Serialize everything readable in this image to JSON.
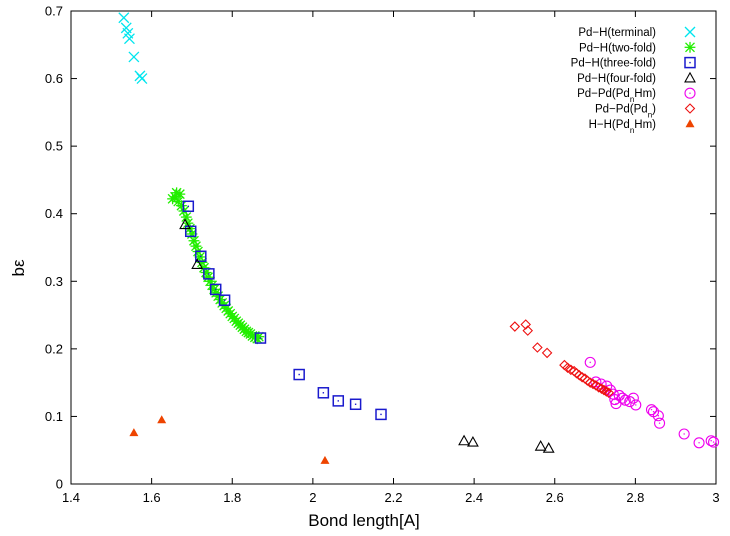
{
  "chart_data": {
    "type": "scatter",
    "title": "",
    "xlabel": "Bond length[A]",
    "ylabel": "bε",
    "xlim": [
      1.4,
      3.0
    ],
    "ylim": [
      0.0,
      0.7
    ],
    "xticks": [
      "1.4",
      "1.6",
      "1.8",
      "2",
      "2.2",
      "2.4",
      "2.6",
      "2.8",
      "3"
    ],
    "yticks": [
      "0",
      "0.1",
      "0.2",
      "0.3",
      "0.4",
      "0.5",
      "0.6",
      "0.7"
    ],
    "grid": false,
    "legend_position": "top-right",
    "series": [
      {
        "name": "Pd−H(terminal)",
        "name_base": "Pd−H(terminal)",
        "name_sub": "",
        "name_tail": "",
        "color": "#00e5ee",
        "marker": "cross",
        "points": [
          [
            1.531,
            0.69
          ],
          [
            1.537,
            0.675
          ],
          [
            1.541,
            0.667
          ],
          [
            1.545,
            0.659
          ],
          [
            1.556,
            0.632
          ],
          [
            1.571,
            0.604
          ],
          [
            1.576,
            0.6
          ]
        ]
      },
      {
        "name": "Pd−H(two-fold)",
        "name_base": "Pd−H(two-fold)",
        "name_sub": "",
        "name_tail": "",
        "color": "#22ee00",
        "marker": "star",
        "points": [
          [
            1.652,
            0.422
          ],
          [
            1.658,
            0.425
          ],
          [
            1.662,
            0.431
          ],
          [
            1.666,
            0.418
          ],
          [
            1.67,
            0.429
          ],
          [
            1.674,
            0.412
          ],
          [
            1.68,
            0.404
          ],
          [
            1.686,
            0.395
          ],
          [
            1.69,
            0.386
          ],
          [
            1.695,
            0.378
          ],
          [
            1.7,
            0.37
          ],
          [
            1.705,
            0.36
          ],
          [
            1.71,
            0.352
          ],
          [
            1.715,
            0.344
          ],
          [
            1.72,
            0.336
          ],
          [
            1.725,
            0.328
          ],
          [
            1.73,
            0.32
          ],
          [
            1.735,
            0.313
          ],
          [
            1.74,
            0.306
          ],
          [
            1.745,
            0.3
          ],
          [
            1.75,
            0.294
          ],
          [
            1.755,
            0.288
          ],
          [
            1.76,
            0.283
          ],
          [
            1.765,
            0.278
          ],
          [
            1.77,
            0.273
          ],
          [
            1.775,
            0.268
          ],
          [
            1.78,
            0.264
          ],
          [
            1.785,
            0.26
          ],
          [
            1.79,
            0.256
          ],
          [
            1.795,
            0.252
          ],
          [
            1.8,
            0.248
          ],
          [
            1.805,
            0.245
          ],
          [
            1.81,
            0.241
          ],
          [
            1.815,
            0.238
          ],
          [
            1.82,
            0.235
          ],
          [
            1.825,
            0.232
          ],
          [
            1.83,
            0.229
          ],
          [
            1.835,
            0.226
          ],
          [
            1.84,
            0.224
          ],
          [
            1.845,
            0.222
          ],
          [
            1.85,
            0.219
          ],
          [
            1.856,
            0.217
          ],
          [
            1.862,
            0.215
          ],
          [
            1.866,
            0.218
          ]
        ]
      },
      {
        "name": "Pd−H(three-fold)",
        "name_base": "Pd−H(three-fold)",
        "name_sub": "",
        "name_tail": "",
        "color": "#1a1acd",
        "marker": "square",
        "points": [
          [
            1.691,
            0.411
          ],
          [
            1.697,
            0.374
          ],
          [
            1.722,
            0.337
          ],
          [
            1.742,
            0.311
          ],
          [
            1.759,
            0.288
          ],
          [
            1.781,
            0.272
          ],
          [
            1.87,
            0.216
          ],
          [
            1.966,
            0.162
          ],
          [
            2.026,
            0.135
          ],
          [
            2.063,
            0.123
          ],
          [
            2.106,
            0.118
          ],
          [
            2.169,
            0.103
          ]
        ]
      },
      {
        "name": "Pd−H(four-fold)",
        "name_base": "Pd−H(four-fold)",
        "name_sub": "",
        "name_tail": "",
        "color": "#000000",
        "marker": "triangle-open",
        "points": [
          [
            1.683,
            0.384
          ],
          [
            1.713,
            0.325
          ],
          [
            2.375,
            0.064
          ],
          [
            2.397,
            0.062
          ],
          [
            2.565,
            0.056
          ],
          [
            2.585,
            0.053
          ]
        ]
      },
      {
        "name": "Pd−Pd(PdnHm)",
        "name_base": "Pd−Pd(Pd",
        "name_sub": "n",
        "name_tail": "Hm)",
        "color": "#ee00ee",
        "marker": "circle",
        "points": [
          [
            2.688,
            0.18
          ],
          [
            2.702,
            0.151
          ],
          [
            2.715,
            0.148
          ],
          [
            2.729,
            0.145
          ],
          [
            2.738,
            0.139
          ],
          [
            2.745,
            0.133
          ],
          [
            2.749,
            0.125
          ],
          [
            2.752,
            0.119
          ],
          [
            2.76,
            0.131
          ],
          [
            2.768,
            0.127
          ],
          [
            2.775,
            0.124
          ],
          [
            2.786,
            0.122
          ],
          [
            2.795,
            0.127
          ],
          [
            2.801,
            0.117
          ],
          [
            2.84,
            0.11
          ],
          [
            2.845,
            0.107
          ],
          [
            2.857,
            0.101
          ],
          [
            2.86,
            0.09
          ],
          [
            2.921,
            0.074
          ],
          [
            2.958,
            0.061
          ],
          [
            2.988,
            0.064
          ],
          [
            2.994,
            0.062
          ]
        ]
      },
      {
        "name": "Pd−Pd(Pdn)",
        "name_base": "Pd−Pd(Pd",
        "name_sub": "n",
        "name_tail": ")",
        "color": "#ee1111",
        "marker": "diamond",
        "points": [
          [
            2.501,
            0.233
          ],
          [
            2.528,
            0.236
          ],
          [
            2.533,
            0.227
          ],
          [
            2.557,
            0.202
          ],
          [
            2.581,
            0.194
          ],
          [
            2.624,
            0.176
          ],
          [
            2.632,
            0.172
          ],
          [
            2.64,
            0.169
          ],
          [
            2.648,
            0.167
          ],
          [
            2.654,
            0.164
          ],
          [
            2.661,
            0.161
          ],
          [
            2.668,
            0.158
          ],
          [
            2.675,
            0.156
          ],
          [
            2.681,
            0.153
          ],
          [
            2.688,
            0.15
          ],
          [
            2.695,
            0.148
          ],
          [
            2.702,
            0.146
          ],
          [
            2.709,
            0.143
          ],
          [
            2.716,
            0.141
          ],
          [
            2.722,
            0.139
          ],
          [
            2.728,
            0.137
          ],
          [
            2.734,
            0.135
          ]
        ]
      },
      {
        "name": "H−H(PdnHm)",
        "name_base": "H−H(Pd",
        "name_sub": "n",
        "name_tail": "Hm)",
        "color": "#ee4400",
        "marker": "triangle-filled",
        "points": [
          [
            1.556,
            0.076
          ],
          [
            1.625,
            0.095
          ],
          [
            2.03,
            0.035
          ]
        ]
      }
    ]
  }
}
